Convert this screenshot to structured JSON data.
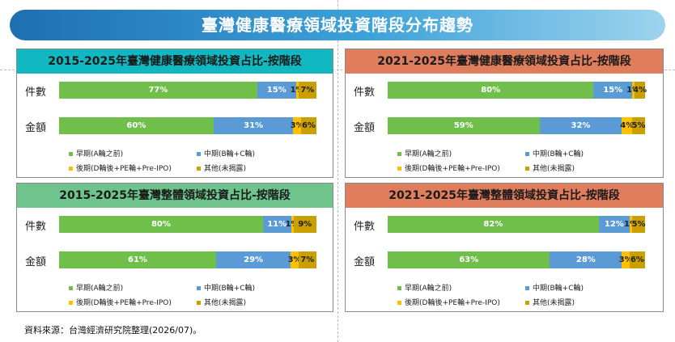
{
  "page_title": "臺灣健康醫療領域投資階段分布趨勢",
  "source_note": "資料來源：台灣經濟研究院整理(2026/07)。",
  "legend": [
    "早期(A輪之前)",
    "中期(B輪+C輪)",
    "後期(D輪後+PE輪+Pre-IPO)",
    "其他(未揭露)"
  ],
  "colors": {
    "early": "#6fbf4a",
    "mid": "#5b9bd5",
    "late": "#ffc000",
    "other": "#c9a000"
  },
  "chart_data": [
    {
      "type": "bar",
      "stacked": "horizontal-100",
      "title": "2015-2025年臺灣健康醫療領域投資占比-按階段",
      "header_color": "#12b8c1",
      "categories": [
        "件數",
        "金額"
      ],
      "value_labels": [
        [
          "77%",
          "15%",
          "1%",
          "7%"
        ],
        [
          "60%",
          "31%",
          "3%",
          "6%"
        ]
      ],
      "series": [
        {
          "name": "早期(A輪之前)",
          "values": [
            77,
            60
          ]
        },
        {
          "name": "中期(B輪+C輪)",
          "values": [
            15,
            31
          ]
        },
        {
          "name": "後期(D輪後+PE輪+Pre-IPO)",
          "values": [
            1,
            3
          ]
        },
        {
          "name": "其他(未揭露)",
          "values": [
            7,
            6
          ]
        }
      ]
    },
    {
      "type": "bar",
      "stacked": "horizontal-100",
      "title": "2021-2025年臺灣健康醫療領域投資占比-按階段",
      "header_color": "#e07d5c",
      "categories": [
        "件數",
        "金額"
      ],
      "value_labels": [
        [
          "80%",
          "15%",
          "1%",
          "4%"
        ],
        [
          "59%",
          "32%",
          "4%",
          "5%"
        ]
      ],
      "series": [
        {
          "name": "早期(A輪之前)",
          "values": [
            80,
            59
          ]
        },
        {
          "name": "中期(B輪+C輪)",
          "values": [
            15,
            32
          ]
        },
        {
          "name": "後期(D輪後+PE輪+Pre-IPO)",
          "values": [
            1,
            4
          ]
        },
        {
          "name": "其他(未揭露)",
          "values": [
            4,
            5
          ]
        }
      ]
    },
    {
      "type": "bar",
      "stacked": "horizontal-100",
      "title": "2015-2025年臺灣整體領域投資占比-按階段",
      "header_color": "#6ec48c",
      "categories": [
        "件數",
        "金額"
      ],
      "value_labels": [
        [
          "80%",
          "11%",
          "1%",
          "9%"
        ],
        [
          "61%",
          "29%",
          "3%",
          "7%"
        ]
      ],
      "series": [
        {
          "name": "早期(A輪之前)",
          "values": [
            80,
            61
          ]
        },
        {
          "name": "中期(B輪+C輪)",
          "values": [
            11,
            29
          ]
        },
        {
          "name": "後期(D輪後+PE輪+Pre-IPO)",
          "values": [
            1,
            3
          ]
        },
        {
          "name": "其他(未揭露)",
          "values": [
            9,
            7
          ]
        }
      ]
    },
    {
      "type": "bar",
      "stacked": "horizontal-100",
      "title": "2021-2025年臺灣整體領域投資占比-按階段",
      "header_color": "#e07d5c",
      "categories": [
        "件數",
        "金額"
      ],
      "value_labels": [
        [
          "82%",
          "12%",
          "1%",
          "5%"
        ],
        [
          "63%",
          "28%",
          "3%",
          "6%"
        ]
      ],
      "series": [
        {
          "name": "早期(A輪之前)",
          "values": [
            82,
            63
          ]
        },
        {
          "name": "中期(B輪+C輪)",
          "values": [
            12,
            28
          ]
        },
        {
          "name": "後期(D輪後+PE輪+Pre-IPO)",
          "values": [
            1,
            3
          ]
        },
        {
          "name": "其他(未揭露)",
          "values": [
            5,
            6
          ]
        }
      ]
    }
  ]
}
